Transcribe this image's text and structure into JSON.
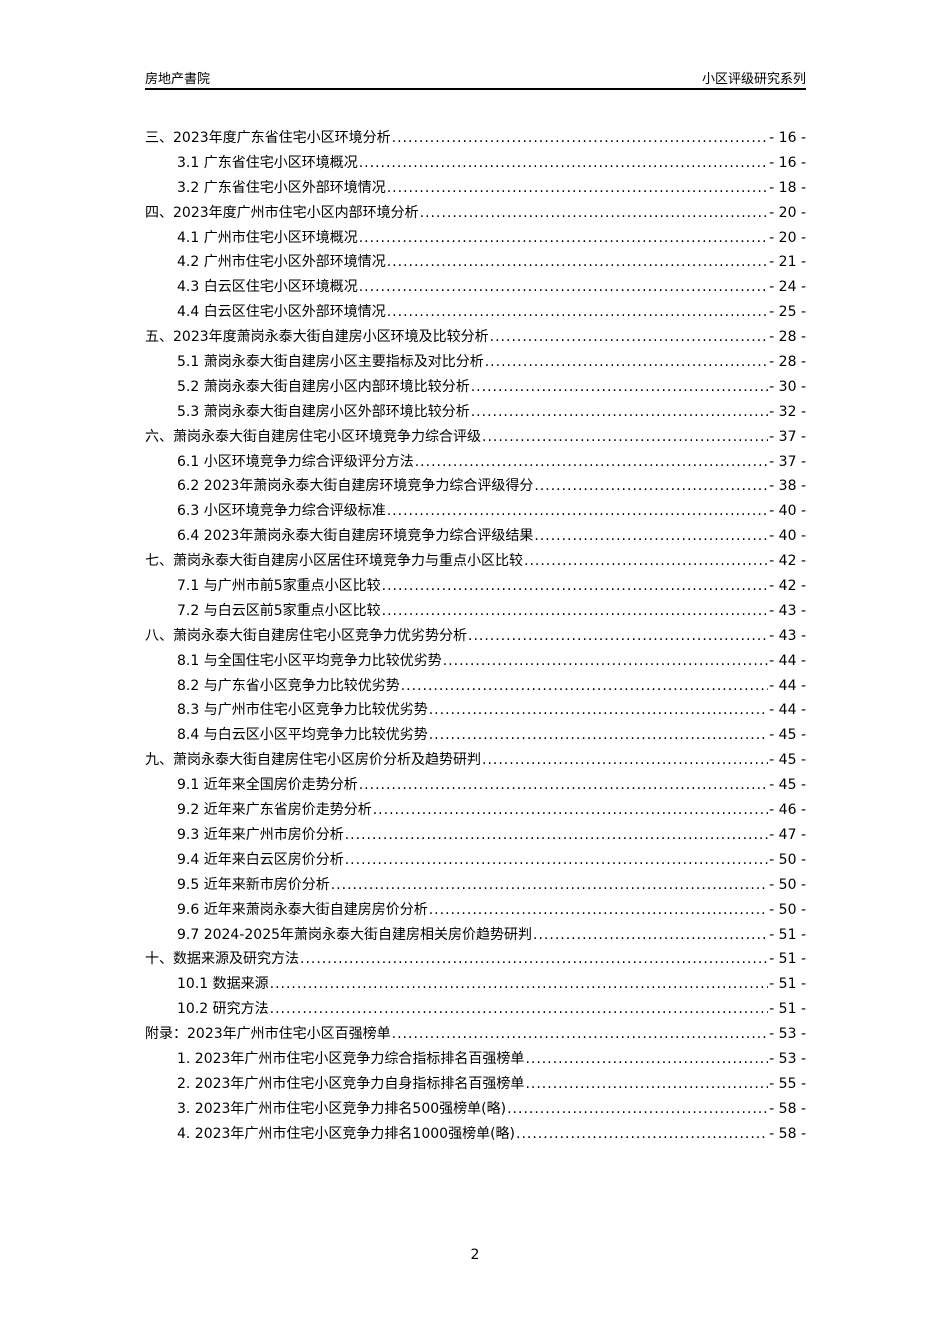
{
  "header": {
    "left": "房地产書院",
    "right": "小区评级研究系列"
  },
  "toc": [
    {
      "level": 1,
      "title": "三、2023年度广东省住宅小区环境分析",
      "page": "- 16 -"
    },
    {
      "level": 2,
      "title": "3.1 广东省住宅小区环境概况",
      "page": "- 16 -"
    },
    {
      "level": 2,
      "title": "3.2 广东省住宅小区外部环境情况",
      "page": "- 18 -"
    },
    {
      "level": 1,
      "title": "四、2023年度广州市住宅小区内部环境分析",
      "page": "- 20 -"
    },
    {
      "level": 2,
      "title": "4.1 广州市住宅小区环境概况",
      "page": "- 20 -"
    },
    {
      "level": 2,
      "title": "4.2 广州市住宅小区外部环境情况",
      "page": "- 21 -"
    },
    {
      "level": 2,
      "title": "4.3 白云区住宅小区环境概况",
      "page": "- 24 -"
    },
    {
      "level": 2,
      "title": "4.4 白云区住宅小区外部环境情况",
      "page": "- 25 -"
    },
    {
      "level": 1,
      "title": "五、2023年度萧岗永泰大街自建房小区环境及比较分析",
      "page": "- 28 -"
    },
    {
      "level": 2,
      "title": "5.1 萧岗永泰大街自建房小区主要指标及对比分析",
      "page": "- 28 -"
    },
    {
      "level": 2,
      "title": "5.2 萧岗永泰大街自建房小区内部环境比较分析",
      "page": "- 30 -"
    },
    {
      "level": 2,
      "title": "5.3 萧岗永泰大街自建房小区外部环境比较分析",
      "page": "- 32 -"
    },
    {
      "level": 1,
      "title": "六、萧岗永泰大街自建房住宅小区环境竞争力综合评级",
      "page": "- 37 -"
    },
    {
      "level": 2,
      "title": "6.1 小区环境竞争力综合评级评分方法",
      "page": "- 37 -"
    },
    {
      "level": 2,
      "title": "6.2 2023年萧岗永泰大街自建房环境竞争力综合评级得分",
      "page": "- 38 -"
    },
    {
      "level": 2,
      "title": "6.3 小区环境竞争力综合评级标准",
      "page": "- 40 -"
    },
    {
      "level": 2,
      "title": "6.4 2023年萧岗永泰大街自建房环境竞争力综合评级结果",
      "page": "- 40 -"
    },
    {
      "level": 1,
      "title": "七、萧岗永泰大街自建房小区居住环境竞争力与重点小区比较",
      "page": "- 42 -"
    },
    {
      "level": 2,
      "title": "7.1 与广州市前5家重点小区比较",
      "page": "- 42 -"
    },
    {
      "level": 2,
      "title": "7.2 与白云区前5家重点小区比较",
      "page": "- 43 -"
    },
    {
      "level": 1,
      "title": "八、萧岗永泰大街自建房住宅小区竞争力优劣势分析",
      "page": "- 43 -"
    },
    {
      "level": 2,
      "title": "8.1 与全国住宅小区平均竞争力比较优劣势",
      "page": "- 44 -"
    },
    {
      "level": 2,
      "title": "8.2 与广东省小区竞争力比较优劣势",
      "page": "- 44 -"
    },
    {
      "level": 2,
      "title": "8.3 与广州市住宅小区竞争力比较优劣势",
      "page": "- 44 -"
    },
    {
      "level": 2,
      "title": "8.4 与白云区小区平均竞争力比较优劣势",
      "page": "- 45 -"
    },
    {
      "level": 1,
      "title": "九、萧岗永泰大街自建房住宅小区房价分析及趋势研判",
      "page": "- 45 -"
    },
    {
      "level": 2,
      "title": "9.1 近年来全国房价走势分析",
      "page": "- 45 -"
    },
    {
      "level": 2,
      "title": "9.2 近年来广东省房价走势分析",
      "page": "- 46 -"
    },
    {
      "level": 2,
      "title": "9.3 近年来广州市房价分析",
      "page": "- 47 -"
    },
    {
      "level": 2,
      "title": "9.4 近年来白云区房价分析",
      "page": "- 50 -"
    },
    {
      "level": 2,
      "title": "9.5 近年来新市房价分析",
      "page": "- 50 -"
    },
    {
      "level": 2,
      "title": "9.6 近年来萧岗永泰大街自建房房价分析",
      "page": "- 50 -"
    },
    {
      "level": 2,
      "title": "9.7 2024-2025年萧岗永泰大街自建房相关房价趋势研判",
      "page": "- 51 -"
    },
    {
      "level": 1,
      "title": "十、数据来源及研究方法",
      "page": "- 51 -"
    },
    {
      "level": 2,
      "title": "10.1 数据来源",
      "page": "- 51 -"
    },
    {
      "level": 2,
      "title": "10.2 研究方法",
      "page": "- 51 -"
    },
    {
      "level": 1,
      "title": "附录：2023年广州市住宅小区百强榜单",
      "page": "- 53 -"
    },
    {
      "level": 2,
      "title": "1.  2023年广州市住宅小区竞争力综合指标排名百强榜单",
      "page": "- 53 -"
    },
    {
      "level": 2,
      "title": "2.  2023年广州市住宅小区竞争力自身指标排名百强榜单",
      "page": "- 55 -"
    },
    {
      "level": 2,
      "title": "3.  2023年广州市住宅小区竞争力排名500强榜单(略)",
      "page": "- 58 -"
    },
    {
      "level": 2,
      "title": "4.  2023年广州市住宅小区竞争力排名1000强榜单(略)",
      "page": "- 58 -"
    }
  ],
  "page_number": "2"
}
